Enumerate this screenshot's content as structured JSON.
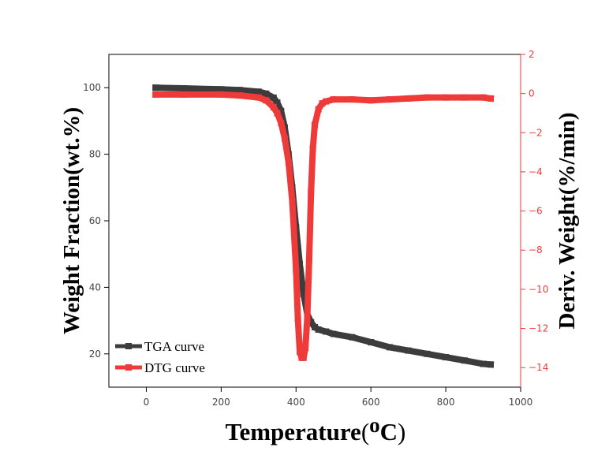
{
  "chart_data": {
    "type": "line",
    "xlabel": "Temperature",
    "xlabel_unit_sup": "o",
    "xlabel_unit": "C",
    "x_open": "(",
    "x_close": ")",
    "ylabel_left": "Weight Fraction(wt.%)",
    "ylabel_right": "Deriv. Weight(%/min)",
    "xlim": [
      -100,
      1000
    ],
    "ylim_left": [
      10,
      110
    ],
    "ylim_right": [
      -15,
      2
    ],
    "x_ticks": [
      0,
      200,
      400,
      600,
      800,
      1000
    ],
    "y_left_ticks": [
      20,
      40,
      60,
      80,
      100
    ],
    "y_right_ticks": [
      2,
      0,
      -2,
      -4,
      -6,
      -8,
      -10,
      -12,
      -14
    ],
    "legend_position": "bottom-left",
    "colors": {
      "tga": "#3c3c3c",
      "dtg": "#ef3a3a",
      "right_axis": "#ef3a3a",
      "axis": "#000000"
    },
    "series": [
      {
        "name": "TGA curve",
        "axis": "left",
        "x": [
          25,
          100,
          200,
          250,
          300,
          320,
          340,
          350,
          360,
          370,
          380,
          390,
          400,
          410,
          420,
          430,
          440,
          450,
          460,
          480,
          500,
          550,
          600,
          650,
          700,
          750,
          800,
          850,
          900,
          920
        ],
        "y": [
          100,
          99.8,
          99.5,
          99.3,
          98.8,
          98.2,
          97.0,
          95.5,
          93.0,
          88.0,
          80.0,
          70.0,
          58.0,
          47.0,
          38.0,
          32.0,
          29.5,
          28.0,
          27.3,
          26.7,
          26.0,
          25.0,
          23.5,
          22.0,
          21.0,
          20.0,
          19.0,
          18.0,
          17.0,
          16.8
        ]
      },
      {
        "name": "DTG curve",
        "axis": "right",
        "x": [
          25,
          100,
          200,
          250,
          300,
          320,
          340,
          350,
          360,
          370,
          380,
          390,
          400,
          405,
          410,
          415,
          420,
          425,
          430,
          435,
          440,
          445,
          450,
          460,
          470,
          480,
          500,
          550,
          600,
          650,
          700,
          750,
          800,
          850,
          900,
          920
        ],
        "y": [
          -0.05,
          -0.05,
          -0.05,
          -0.1,
          -0.2,
          -0.35,
          -0.7,
          -1.0,
          -1.5,
          -2.3,
          -3.5,
          -5.5,
          -9.0,
          -11.5,
          -13.2,
          -13.5,
          -13.5,
          -13.0,
          -11.5,
          -8.5,
          -5.0,
          -2.8,
          -1.6,
          -0.8,
          -0.5,
          -0.4,
          -0.3,
          -0.3,
          -0.35,
          -0.3,
          -0.25,
          -0.2,
          -0.2,
          -0.2,
          -0.2,
          -0.25
        ]
      }
    ]
  }
}
